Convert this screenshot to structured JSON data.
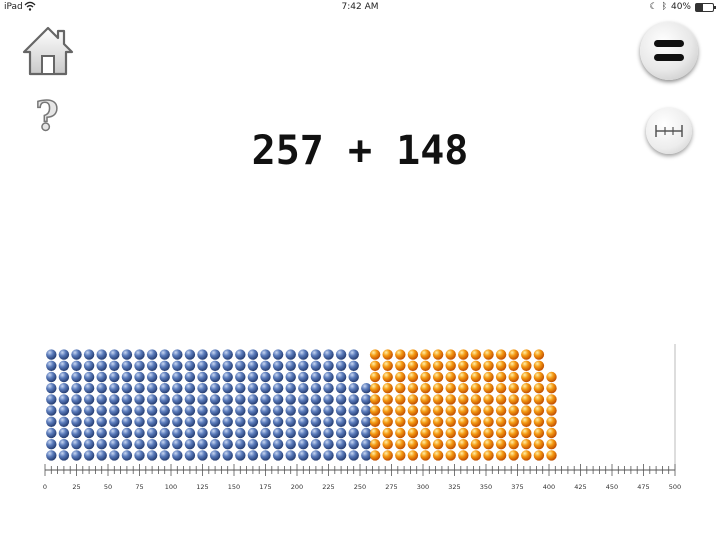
{
  "status_bar": {
    "carrier": "iPad",
    "time": "7:42 AM",
    "battery_percent": "40%",
    "battery_level": 0.4
  },
  "nav": {
    "home_icon": "home-icon",
    "help_icon": "question-mark-icon",
    "menu_icon": "menu-icon",
    "ruler_icon": "ruler-icon"
  },
  "equation": {
    "text": "257 + 148"
  },
  "colors": {
    "first_addend": "#4a6aa8",
    "second_addend": "#f08a10",
    "ruler": "#555555"
  },
  "chart_data": {
    "type": "bead-grid",
    "rows_of_ten": true,
    "series": [
      {
        "value": 257,
        "color": "#4a6aa8"
      },
      {
        "value": 148,
        "color": "#f08a10"
      }
    ],
    "total": 405,
    "ruler": {
      "min": 0,
      "max": 500,
      "major_step": 25,
      "minor_step": 5,
      "tick_labels": [
        "0",
        "25",
        "50",
        "75",
        "100",
        "125",
        "150",
        "175",
        "200",
        "225",
        "250",
        "275",
        "300",
        "325",
        "350",
        "375",
        "400",
        "425",
        "450",
        "475",
        "500"
      ]
    }
  }
}
